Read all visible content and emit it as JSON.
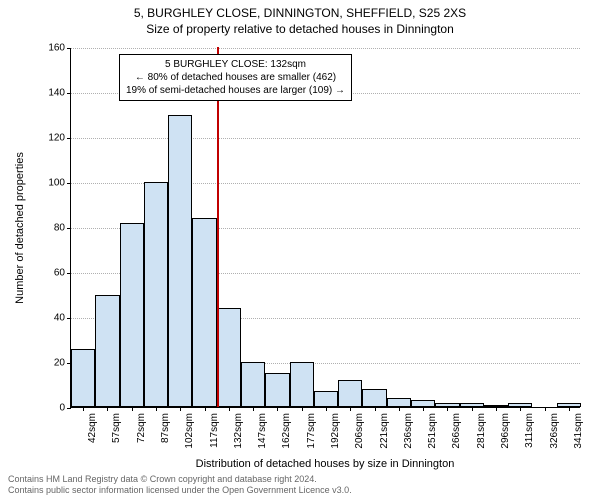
{
  "title_sup": "5, BURGHLEY CLOSE, DINNINGTON, SHEFFIELD, S25 2XS",
  "title_sub": "Size of property relative to detached houses in Dinnington",
  "ylabel": "Number of detached properties",
  "xlabel": "Distribution of detached houses by size in Dinnington",
  "chart": {
    "type": "histogram",
    "bar_fill": "#cfe2f3",
    "bar_stroke": "#000000",
    "marker_color": "#c00000",
    "grid_color": "#b0b0b0",
    "background": "#ffffff",
    "ylim": [
      0,
      160
    ],
    "yticks": [
      0,
      20,
      40,
      60,
      80,
      100,
      120,
      140,
      160
    ],
    "x_labels": [
      "42sqm",
      "57sqm",
      "72sqm",
      "87sqm",
      "102sqm",
      "117sqm",
      "132sqm",
      "147sqm",
      "162sqm",
      "177sqm",
      "192sqm",
      "206sqm",
      "221sqm",
      "236sqm",
      "251sqm",
      "266sqm",
      "281sqm",
      "296sqm",
      "311sqm",
      "326sqm",
      "341sqm"
    ],
    "values": [
      26,
      50,
      82,
      100,
      130,
      84,
      44,
      20,
      15,
      20,
      7,
      12,
      8,
      4,
      3,
      2,
      2,
      1,
      2,
      0,
      2
    ],
    "marker_after_bin_index": 5,
    "marker_height_value": 160
  },
  "annotation": {
    "line1": "5 BURGHLEY CLOSE: 132sqm",
    "line2": "← 80% of detached houses are smaller (462)",
    "line3": "19% of semi-detached houses are larger (109) →"
  },
  "footer_line1": "Contains HM Land Registry data © Crown copyright and database right 2024.",
  "footer_line2": "Contains public sector information licensed under the Open Government Licence v3.0."
}
